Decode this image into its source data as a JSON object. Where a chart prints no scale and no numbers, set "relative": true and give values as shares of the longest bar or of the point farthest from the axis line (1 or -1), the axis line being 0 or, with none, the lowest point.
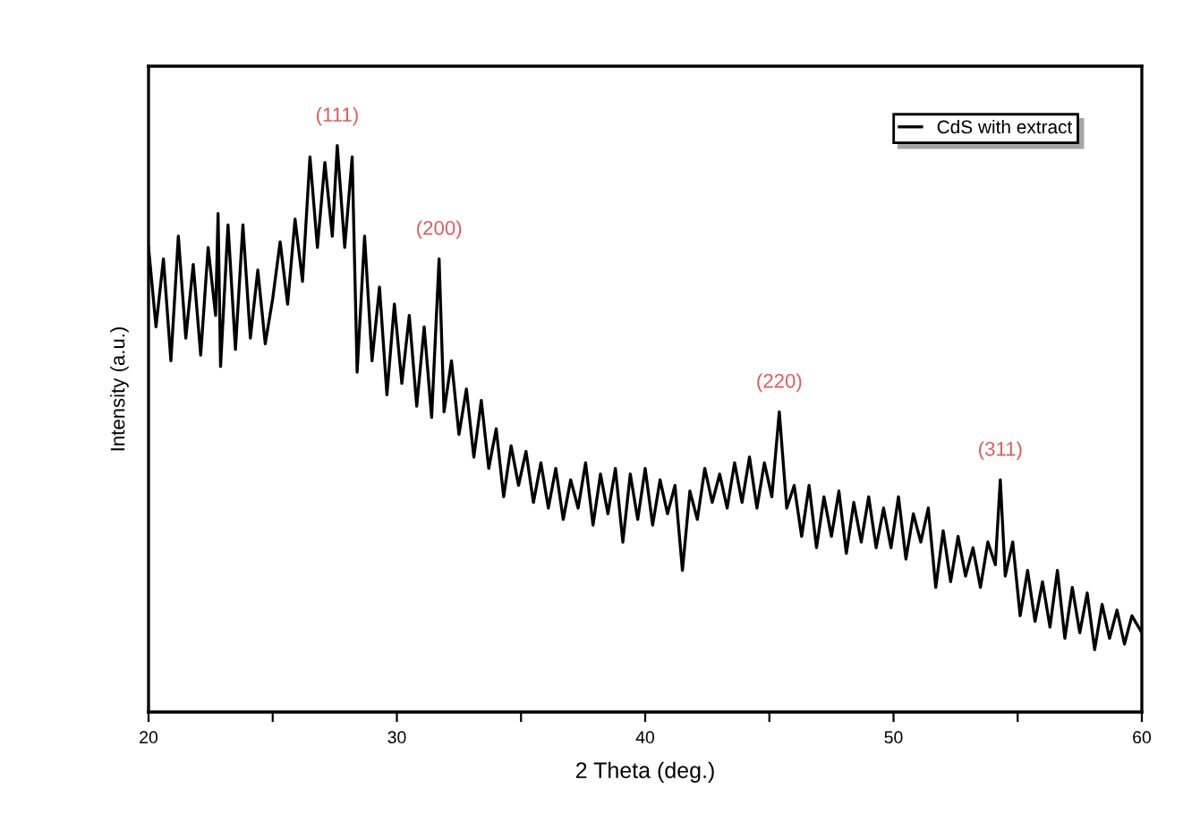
{
  "chart_data": {
    "type": "line",
    "relative": true,
    "xlabel": "2 Theta (deg.)",
    "ylabel": "Intensity (a.u.)",
    "xlim": [
      20,
      60
    ],
    "xticks": [
      20,
      {
        "value": 25,
        "label": null
      },
      30,
      {
        "value": 35,
        "label": null
      },
      40,
      {
        "value": 45,
        "label": null
      },
      50,
      {
        "value": 55,
        "label": null
      },
      60
    ],
    "tick_labels": "x",
    "legend": "top right",
    "grid": false,
    "annotations": [
      {
        "text": "(111)",
        "x": 27.6,
        "y": 1.0
      },
      {
        "text": "(200)",
        "x": 31.7,
        "y": 0.8
      },
      {
        "text": "(220)",
        "x": 45.4,
        "y": 0.53
      },
      {
        "text": "(311)",
        "x": 54.3,
        "y": 0.41
      }
    ],
    "series": [
      {
        "name": "CdS with extract",
        "color": "#000000",
        "x": [
          20.0,
          20.3,
          20.6,
          20.9,
          21.2,
          21.5,
          21.8,
          22.1,
          22.4,
          22.7,
          22.8,
          22.9,
          23.2,
          23.5,
          23.8,
          24.1,
          24.4,
          24.7,
          25.0,
          25.3,
          25.6,
          25.9,
          26.2,
          26.5,
          26.8,
          27.1,
          27.4,
          27.6,
          27.9,
          28.2,
          28.4,
          28.7,
          29.0,
          29.3,
          29.6,
          29.9,
          30.2,
          30.5,
          30.8,
          31.1,
          31.4,
          31.7,
          31.9,
          32.2,
          32.5,
          32.8,
          33.1,
          33.4,
          33.7,
          34.0,
          34.3,
          34.6,
          34.9,
          35.2,
          35.5,
          35.8,
          36.1,
          36.4,
          36.7,
          37.0,
          37.3,
          37.6,
          37.9,
          38.2,
          38.5,
          38.8,
          39.1,
          39.4,
          39.7,
          40.0,
          40.3,
          40.6,
          40.9,
          41.2,
          41.5,
          41.8,
          42.1,
          42.4,
          42.7,
          43.0,
          43.3,
          43.6,
          43.9,
          44.2,
          44.5,
          44.8,
          45.1,
          45.4,
          45.7,
          46.0,
          46.3,
          46.6,
          46.9,
          47.2,
          47.5,
          47.8,
          48.1,
          48.4,
          48.7,
          49.0,
          49.3,
          49.6,
          49.9,
          50.2,
          50.5,
          50.8,
          51.1,
          51.4,
          51.7,
          52.0,
          52.3,
          52.6,
          52.9,
          53.2,
          53.5,
          53.8,
          54.1,
          54.3,
          54.5,
          54.8,
          55.1,
          55.4,
          55.7,
          56.0,
          56.3,
          56.6,
          56.9,
          57.2,
          57.5,
          57.8,
          58.1,
          58.4,
          58.7,
          59.0,
          59.3,
          59.6,
          60.0
        ],
        "values": [
          0.82,
          0.68,
          0.8,
          0.62,
          0.84,
          0.66,
          0.79,
          0.63,
          0.82,
          0.7,
          0.88,
          0.61,
          0.86,
          0.64,
          0.86,
          0.66,
          0.78,
          0.65,
          0.73,
          0.83,
          0.72,
          0.87,
          0.76,
          0.98,
          0.82,
          0.97,
          0.84,
          1.0,
          0.82,
          0.98,
          0.6,
          0.84,
          0.62,
          0.75,
          0.56,
          0.72,
          0.58,
          0.7,
          0.54,
          0.68,
          0.52,
          0.8,
          0.53,
          0.62,
          0.49,
          0.57,
          0.45,
          0.55,
          0.43,
          0.5,
          0.38,
          0.47,
          0.4,
          0.46,
          0.37,
          0.44,
          0.36,
          0.43,
          0.34,
          0.41,
          0.36,
          0.44,
          0.33,
          0.42,
          0.35,
          0.43,
          0.3,
          0.42,
          0.34,
          0.43,
          0.33,
          0.41,
          0.35,
          0.4,
          0.25,
          0.39,
          0.34,
          0.43,
          0.37,
          0.42,
          0.36,
          0.44,
          0.37,
          0.45,
          0.36,
          0.44,
          0.38,
          0.53,
          0.36,
          0.4,
          0.31,
          0.4,
          0.29,
          0.38,
          0.31,
          0.39,
          0.28,
          0.37,
          0.3,
          0.38,
          0.29,
          0.36,
          0.29,
          0.38,
          0.27,
          0.35,
          0.3,
          0.36,
          0.22,
          0.32,
          0.23,
          0.31,
          0.24,
          0.29,
          0.22,
          0.3,
          0.26,
          0.41,
          0.24,
          0.3,
          0.17,
          0.25,
          0.16,
          0.23,
          0.15,
          0.25,
          0.13,
          0.22,
          0.14,
          0.21,
          0.11,
          0.19,
          0.13,
          0.18,
          0.12,
          0.17,
          0.14
        ]
      }
    ]
  }
}
